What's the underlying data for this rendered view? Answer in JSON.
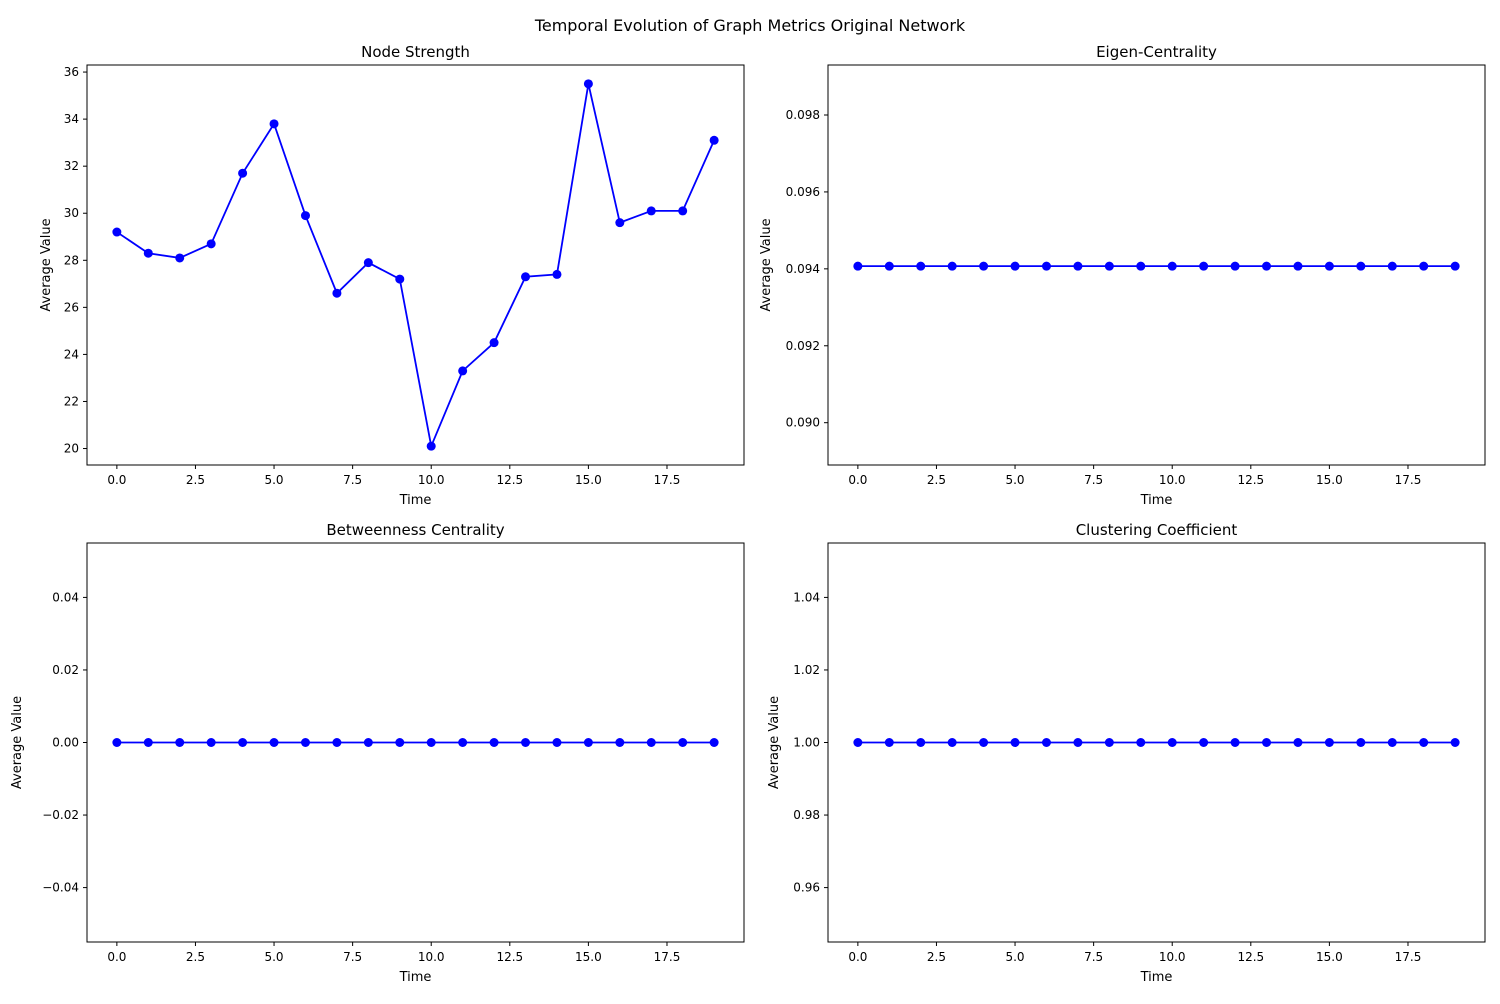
{
  "figure": {
    "suptitle": "Temporal Evolution of Graph Metrics Original Network",
    "line_color": "#0000ff"
  },
  "chart_data": [
    {
      "type": "line",
      "title": "Node Strength",
      "xlabel": "Time",
      "ylabel": "Average Value",
      "xlim": [
        -0.95,
        19.95
      ],
      "ylim": [
        19.3,
        36.3
      ],
      "xticks": [
        "0.0",
        "2.5",
        "5.0",
        "7.5",
        "10.0",
        "12.5",
        "15.0",
        "17.5"
      ],
      "yticks": [
        "20",
        "22",
        "24",
        "26",
        "28",
        "30",
        "32",
        "34",
        "36"
      ],
      "grid": false,
      "x": [
        0,
        1,
        2,
        3,
        4,
        5,
        6,
        7,
        8,
        9,
        10,
        11,
        12,
        13,
        14,
        15,
        16,
        17,
        18,
        19
      ],
      "series": [
        {
          "values": [
            29.2,
            28.3,
            28.1,
            28.7,
            31.7,
            33.8,
            29.9,
            26.6,
            27.9,
            27.2,
            20.1,
            23.3,
            24.5,
            27.3,
            27.4,
            35.5,
            29.6,
            30.1,
            30.1,
            33.1
          ]
        }
      ]
    },
    {
      "type": "line",
      "title": "Eigen-Centrality",
      "xlabel": "Time",
      "ylabel": "Average Value",
      "xlim": [
        -0.95,
        19.95
      ],
      "ylim": [
        0.0889,
        0.0993
      ],
      "xticks": [
        "0.0",
        "2.5",
        "5.0",
        "7.5",
        "10.0",
        "12.5",
        "15.0",
        "17.5"
      ],
      "yticks": [
        "0.090",
        "0.092",
        "0.094",
        "0.096",
        "0.098"
      ],
      "grid": false,
      "x": [
        0,
        1,
        2,
        3,
        4,
        5,
        6,
        7,
        8,
        9,
        10,
        11,
        12,
        13,
        14,
        15,
        16,
        17,
        18,
        19
      ],
      "series": [
        {
          "values": [
            0.09407,
            0.09407,
            0.09407,
            0.09407,
            0.09407,
            0.09407,
            0.09407,
            0.09407,
            0.09407,
            0.09407,
            0.09407,
            0.09407,
            0.09407,
            0.09407,
            0.09407,
            0.09407,
            0.09407,
            0.09407,
            0.09407,
            0.09407
          ]
        }
      ]
    },
    {
      "type": "line",
      "title": "Betweenness Centrality",
      "xlabel": "Time",
      "ylabel": "Average Value",
      "xlim": [
        -0.95,
        19.95
      ],
      "ylim": [
        -0.055,
        0.055
      ],
      "xticks": [
        "0.0",
        "2.5",
        "5.0",
        "7.5",
        "10.0",
        "12.5",
        "15.0",
        "17.5"
      ],
      "yticks": [
        "−0.04",
        "−0.02",
        "0.00",
        "0.02",
        "0.04"
      ],
      "grid": false,
      "x": [
        0,
        1,
        2,
        3,
        4,
        5,
        6,
        7,
        8,
        9,
        10,
        11,
        12,
        13,
        14,
        15,
        16,
        17,
        18,
        19
      ],
      "series": [
        {
          "values": [
            0,
            0,
            0,
            0,
            0,
            0,
            0,
            0,
            0,
            0,
            0,
            0,
            0,
            0,
            0,
            0,
            0,
            0,
            0,
            0
          ]
        }
      ]
    },
    {
      "type": "line",
      "title": "Clustering Coefficient",
      "xlabel": "Time",
      "ylabel": "Average Value",
      "xlim": [
        -0.95,
        19.95
      ],
      "ylim": [
        0.945,
        1.055
      ],
      "xticks": [
        "0.0",
        "2.5",
        "5.0",
        "7.5",
        "10.0",
        "12.5",
        "15.0",
        "17.5"
      ],
      "yticks": [
        "0.96",
        "0.98",
        "1.00",
        "1.02",
        "1.04"
      ],
      "grid": false,
      "x": [
        0,
        1,
        2,
        3,
        4,
        5,
        6,
        7,
        8,
        9,
        10,
        11,
        12,
        13,
        14,
        15,
        16,
        17,
        18,
        19
      ],
      "series": [
        {
          "values": [
            1,
            1,
            1,
            1,
            1,
            1,
            1,
            1,
            1,
            1,
            1,
            1,
            1,
            1,
            1,
            1,
            1,
            1,
            1,
            1
          ]
        }
      ]
    }
  ]
}
